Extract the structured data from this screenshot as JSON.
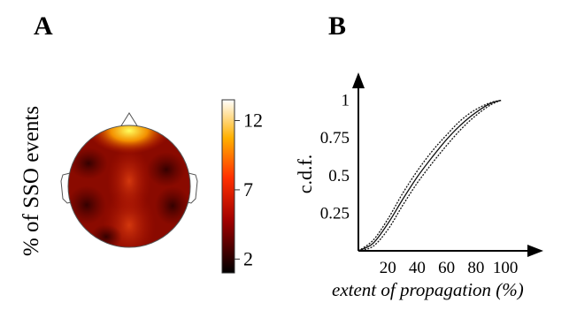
{
  "panels": {
    "a_label": "A",
    "b_label": "B"
  },
  "topomap": {
    "ylabel": "% of SSO events",
    "colorbar_ticks": [
      "12",
      "7",
      "2"
    ],
    "colorbar_values": [
      12,
      7,
      2
    ],
    "colorbar_range": [
      1,
      13.5
    ],
    "colormap": "hot",
    "colors": {
      "low": "#0d0000",
      "mid": "#c0140a",
      "high": "#fff8a0"
    }
  },
  "chart_data": {
    "type": "line",
    "title": "",
    "xlabel": "extent of propagation (%)",
    "ylabel": "c.d.f.",
    "xlim": [
      0,
      115
    ],
    "ylim": [
      0,
      1.08
    ],
    "xticks": [
      "20",
      "40",
      "60",
      "80",
      "100"
    ],
    "xtick_values": [
      20,
      40,
      60,
      80,
      100
    ],
    "yticks": [
      "0.25",
      "0.5",
      "0.75",
      "1"
    ],
    "ytick_values": [
      0.25,
      0.5,
      0.75,
      1
    ],
    "grid": false,
    "series": [
      {
        "style": "dotted",
        "x": [
          0,
          10,
          20,
          30,
          40,
          50,
          60,
          70,
          80,
          90,
          97
        ],
        "y": [
          0,
          0.07,
          0.21,
          0.38,
          0.53,
          0.66,
          0.77,
          0.87,
          0.94,
          0.985,
          1.0
        ]
      },
      {
        "style": "solid",
        "x": [
          0,
          10,
          20,
          30,
          40,
          50,
          60,
          70,
          80,
          90,
          97
        ],
        "y": [
          0,
          0.05,
          0.18,
          0.34,
          0.49,
          0.62,
          0.74,
          0.84,
          0.92,
          0.98,
          1.0
        ]
      },
      {
        "style": "dotted",
        "x": [
          0,
          10,
          20,
          30,
          40,
          50,
          60,
          70,
          80,
          90,
          97
        ],
        "y": [
          0,
          0.03,
          0.14,
          0.3,
          0.45,
          0.58,
          0.7,
          0.81,
          0.9,
          0.97,
          1.0
        ]
      }
    ]
  }
}
